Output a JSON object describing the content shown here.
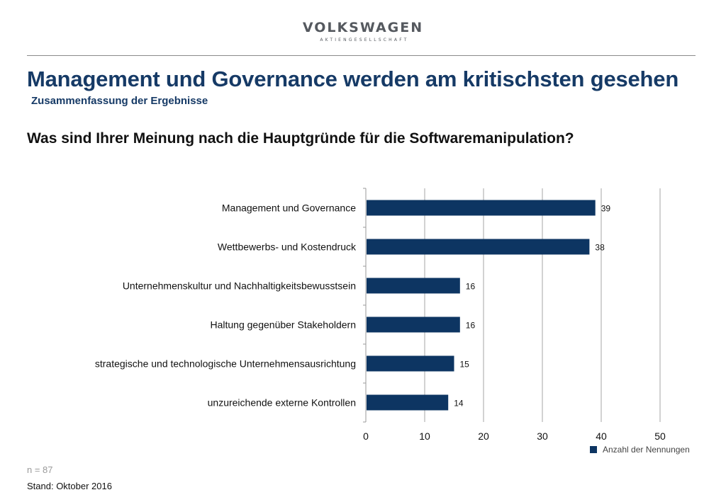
{
  "header": {
    "brand_name": "VOLKSWAGEN",
    "brand_sub": "AKTIENGESELLSCHAFT",
    "title": "Management und Governance werden am kritischsten gesehen",
    "subtitle": "Zusammenfassung der Ergebnisse",
    "question": "Was sind Ihrer Meinung nach die Hauptgründe für die Softwaremanipulation?"
  },
  "chart_data": {
    "type": "bar",
    "orientation": "horizontal",
    "title": "",
    "xlabel": "",
    "ylabel": "",
    "xlim": [
      0,
      50
    ],
    "xticks": [
      0,
      10,
      20,
      30,
      40,
      50
    ],
    "grid": true,
    "legend_position": "bottom-right",
    "categories": [
      "Management und Governance",
      "Wettbewerbs- und Kostendruck",
      "Unternehmenskultur und Nachhaltigkeitsbewusstsein",
      "Haltung gegenüber Stakeholdern",
      "strategische und technologische Unternehmensausrichtung",
      "unzureichende externe Kontrollen"
    ],
    "series": [
      {
        "name": "Anzahl der Nennungen",
        "color": "#0d3562",
        "values": [
          39,
          38,
          16,
          16,
          15,
          14
        ]
      }
    ]
  },
  "footer": {
    "n_note": "n = 87",
    "stand": "Stand: Oktober 2016"
  }
}
